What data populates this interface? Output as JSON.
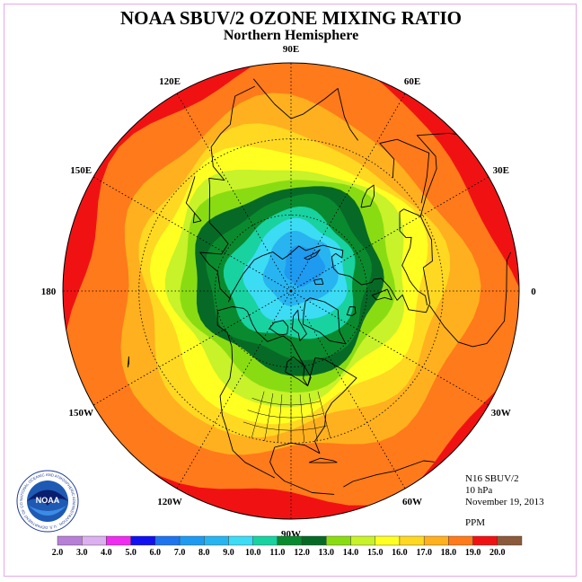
{
  "title": "NOAA SBUV/2 OZONE MIXING RATIO",
  "subtitle": "Northern Hemisphere",
  "longitude_labels": [
    {
      "text": "90E",
      "lon": 90
    },
    {
      "text": "60E",
      "lon": 60
    },
    {
      "text": "30E",
      "lon": 30
    },
    {
      "text": "0",
      "lon": 0
    },
    {
      "text": "30W",
      "lon": -30
    },
    {
      "text": "60W",
      "lon": -60
    },
    {
      "text": "90W",
      "lon": -90
    },
    {
      "text": "120W",
      "lon": -120
    },
    {
      "text": "150W",
      "lon": -150
    },
    {
      "text": "180",
      "lon": 180
    },
    {
      "text": "150E",
      "lon": 150
    },
    {
      "text": "120E",
      "lon": 120
    }
  ],
  "info": {
    "instrument": "N16 SBUV/2",
    "pressure": "10 hPa",
    "date": "November 19, 2013",
    "units": "PPM"
  },
  "logo_text": "NOAA",
  "logo_ring_text": "NATIONAL OCEANIC AND ATMOSPHERIC ADMINISTRATION · U.S. DEPARTMENT OF COMMERCE",
  "colorbar": {
    "labels": [
      "2.0",
      "3.0",
      "4.0",
      "5.0",
      "6.0",
      "7.0",
      "8.0",
      "9.0",
      "10.0",
      "11.0",
      "12.0",
      "13.0",
      "14.0",
      "15.0",
      "16.0",
      "17.0",
      "18.0",
      "19.0",
      "20.0"
    ],
    "colors": [
      "#b77fd6",
      "#dcb0ee",
      "#ee2df0",
      "#1010f0",
      "#1e74ee",
      "#1e9af0",
      "#28b4f0",
      "#3cdcf4",
      "#18d2a0",
      "#0a8a2e",
      "#066a26",
      "#8adc12",
      "#c8f22a",
      "#ffff22",
      "#ffd822",
      "#ffb01e",
      "#ff7a1a",
      "#f01212",
      "#8a5a3a"
    ]
  },
  "map_levels": [
    {
      "value": 17.0,
      "color": "#ff7a1a"
    },
    {
      "value": 16.0,
      "color": "#ffb01e"
    },
    {
      "value": 15.0,
      "color": "#ffd822"
    },
    {
      "value": 14.0,
      "color": "#ffff22"
    },
    {
      "value": 13.0,
      "color": "#c8f22a"
    },
    {
      "value": 12.0,
      "color": "#8adc12"
    },
    {
      "value": 11.0,
      "color": "#066a26"
    },
    {
      "value": 10.0,
      "color": "#0a8a2e"
    },
    {
      "value": 9.0,
      "color": "#18d2a0"
    },
    {
      "value": 8.0,
      "color": "#3cdcf4"
    },
    {
      "value": 7.0,
      "color": "#28b4f0"
    },
    {
      "value": 6.0,
      "color": "#1e9af0"
    }
  ],
  "edge_high_color": "#f01212"
}
